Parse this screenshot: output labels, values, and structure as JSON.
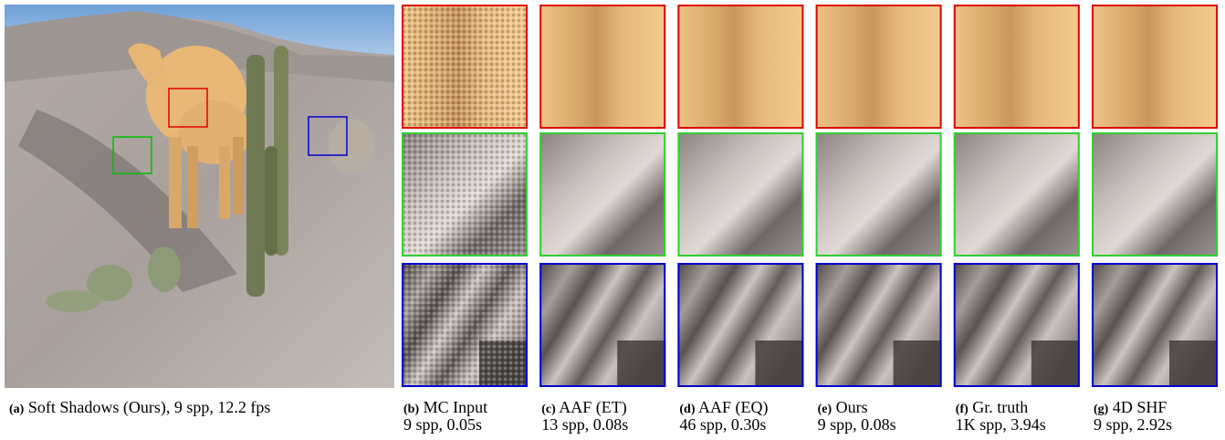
{
  "figure": {
    "main": {
      "label": "(a)",
      "caption": "Soft Shadows (Ours), 9 spp, 12.2 fps"
    },
    "panels": [
      {
        "label": "(b)",
        "title": "MC Input",
        "stats": "9 spp, 0.05s"
      },
      {
        "label": "(c)",
        "title": "AAF (ET)",
        "stats": "13 spp, 0.08s"
      },
      {
        "label": "(d)",
        "title": "AAF (EQ)",
        "stats": "46 spp, 0.30s"
      },
      {
        "label": "(e)",
        "title": "Ours",
        "stats": "9 spp, 0.08s"
      },
      {
        "label": "(f)",
        "title": "Gr. truth",
        "stats": "1K spp, 3.94s"
      },
      {
        "label": "(g)",
        "title": "4D SHF",
        "stats": "9 spp, 2.92s"
      }
    ]
  }
}
